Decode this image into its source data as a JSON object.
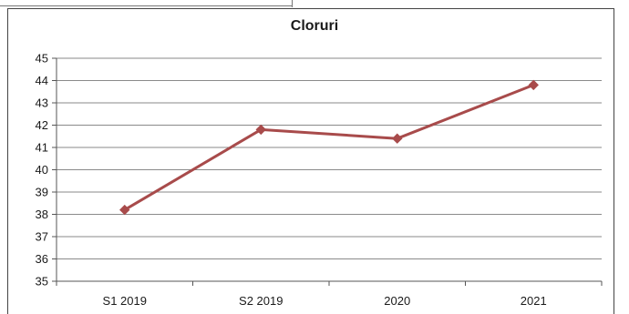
{
  "chart_data": {
    "type": "line",
    "title": "Cloruri",
    "xlabel": "",
    "ylabel": "",
    "categories": [
      "S1 2019",
      "S2 2019",
      "2020",
      "2021"
    ],
    "series": [
      {
        "values": [
          38.2,
          41.8,
          41.4,
          43.8
        ],
        "color": "#a84b4b"
      }
    ],
    "ylim": [
      35,
      45
    ],
    "yticks": [
      35,
      36,
      37,
      38,
      39,
      40,
      41,
      42,
      43,
      44,
      45
    ],
    "grid": true,
    "marker": "diamond",
    "legend": "none"
  }
}
